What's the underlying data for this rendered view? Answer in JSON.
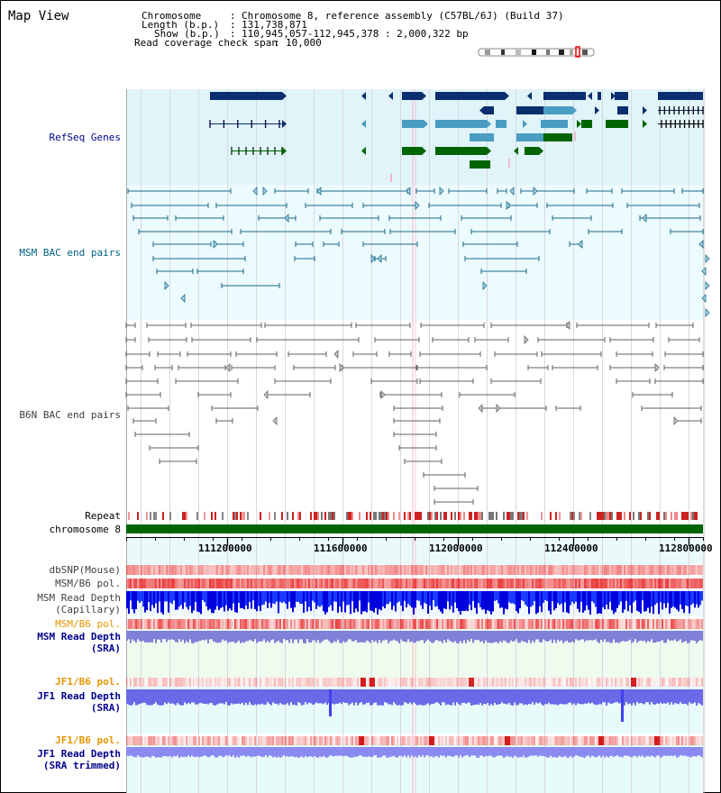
{
  "view": {
    "title": "Map View",
    "header": {
      "chromosome_key": "Chromosome",
      "chromosome_value": "Chromosome 8, reference assembly (C57BL/6J) (Build 37)",
      "length_key": "Length (b.p.)",
      "length_value": "131,738,871",
      "show_key": "Show (b.p.)",
      "show_value": "110,945,057-112,945,378 : 2,000,322 bp",
      "span_key": "Read coverage check span",
      "span_value": "10,000"
    }
  },
  "tracks": {
    "refseq": "RefSeq Genes",
    "msm_bac": "MSM BAC end pairs",
    "b6n_bac": "B6N BAC end pairs",
    "repeat": "Repeat",
    "chromosome": "chromosome 8",
    "dbsnp": "dbSNP(Mouse)",
    "msm_b6_pol_1": "MSM/B6 pol.",
    "msm_depth_cap_1": "MSM Read Depth",
    "msm_depth_cap_2": "(Capillary)",
    "msm_b6_pol_2": "MSM/B6 pol.",
    "msm_depth_sra_1": "MSM Read Depth",
    "msm_depth_sra_2": "(SRA)",
    "jf1_b6_pol_1": "JF1/B6 pol.",
    "jf1_depth_sra_1": "JF1 Read Depth",
    "jf1_depth_sra_2": "(SRA)",
    "jf1_b6_pol_2": "JF1/B6 pol.",
    "jf1_depth_trim_1": "JF1 Read Depth",
    "jf1_depth_trim_2": "(SRA trimmed)"
  },
  "ruler": {
    "ticks": [
      "111200000",
      "111600000",
      "112000000",
      "112400000",
      "112800000"
    ]
  },
  "colors": {
    "refseq_bg": "#e0f4fa",
    "msm_bac_bg": "#ecfbfd",
    "gene_navy": "#0a2e6e",
    "gene_teal": "#4a9cc0",
    "gene_green": "#006400",
    "bac_teal": "#1a6a8a",
    "bac_gray": "#606060",
    "chromosome_bar": "#006400",
    "label_blue": "#00008b",
    "label_teal": "#006080",
    "label_orange": "#e69500",
    "highlight": "#ff88aa"
  }
}
